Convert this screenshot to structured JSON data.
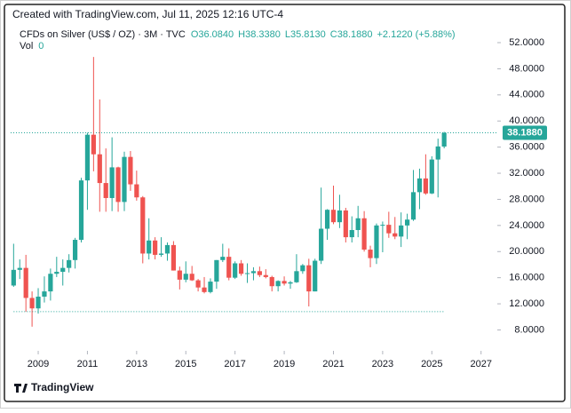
{
  "header": {
    "created": "Created with TradingView.com, Jul 11, 2025 12:16 UTC-4"
  },
  "footer": {
    "brand": "TradingView"
  },
  "chart_data": {
    "type": "candlestick",
    "symbol": "CFDs on Silver (US$ / OZ) · 3M · TVC",
    "ohlc_labels": [
      "O36.0840",
      "H38.3380",
      "L35.8130",
      "C38.1880"
    ],
    "change": "+2.1220 (+5.88%)",
    "volume_label": "Vol",
    "volume": 0,
    "up_color": "#26a69a",
    "down_color": "#ef5350",
    "last_price": {
      "value": 38.188,
      "label": "38.1880"
    },
    "hline": 10.8,
    "xlim": [
      2007.88,
      2027.66
    ],
    "xticks": [
      2009,
      2011,
      2013,
      2015,
      2017,
      2019,
      2021,
      2023,
      2025,
      2027
    ],
    "ylim": [
      4.8,
      54.45
    ],
    "yticks": [
      {
        "value": 8,
        "label": "8.0000"
      },
      {
        "value": 12,
        "label": "12.0000"
      },
      {
        "value": 16,
        "label": "16.0000"
      },
      {
        "value": 20,
        "label": "20.0000"
      },
      {
        "value": 24,
        "label": "24.0000"
      },
      {
        "value": 28,
        "label": "28.0000"
      },
      {
        "value": 32,
        "label": "32.0000"
      },
      {
        "value": 36,
        "label": "36.0000"
      },
      {
        "value": 40,
        "label": "40.0000"
      },
      {
        "value": 44,
        "label": "44.0000"
      },
      {
        "value": 48,
        "label": "48.0000"
      },
      {
        "value": 52,
        "label": "52.0000"
      }
    ],
    "x": [
      2008,
      2008.25,
      2008.5,
      2008.75,
      2009,
      2009.25,
      2009.5,
      2009.75,
      2010,
      2010.25,
      2010.5,
      2010.75,
      2011,
      2011.25,
      2011.5,
      2011.75,
      2012,
      2012.25,
      2012.5,
      2012.75,
      2013,
      2013.25,
      2013.5,
      2013.75,
      2014,
      2014.25,
      2014.5,
      2014.75,
      2015,
      2015.25,
      2015.5,
      2015.75,
      2016,
      2016.25,
      2016.5,
      2016.75,
      2017,
      2017.25,
      2017.5,
      2017.75,
      2018,
      2018.25,
      2018.5,
      2018.75,
      2019,
      2019.25,
      2019.5,
      2019.75,
      2020,
      2020.25,
      2020.5,
      2020.75,
      2021,
      2021.25,
      2021.5,
      2021.75,
      2022,
      2022.25,
      2022.5,
      2022.75,
      2023,
      2023.25,
      2023.5,
      2023.75,
      2024,
      2024.25,
      2024.5,
      2024.75,
      2025,
      2025.25,
      2025.5
    ],
    "open": [
      14.8,
      17.2,
      17.5,
      12.9,
      11.3,
      13.1,
      13.9,
      16.6,
      16.9,
      17.5,
      18.7,
      21.8,
      30.9,
      37.9,
      34.9,
      30.5,
      28.2,
      32.9,
      27.6,
      34.5,
      30.3,
      28.3,
      19.7,
      21.7,
      19.5,
      19.7,
      21.0,
      17.1,
      15.7,
      16.6,
      15.6,
      14.5,
      13.8,
      15.4,
      18.7,
      19.2,
      16.0,
      18.2,
      16.6,
      16.7,
      17.0,
      16.4,
      16.1,
      14.7,
      15.5,
      15.1,
      15.3,
      17.0,
      17.9,
      13.9,
      18.6,
      23.5,
      26.4,
      24.5,
      26.3,
      22.2,
      23.3,
      25.1,
      20.3,
      19.0,
      24.0,
      24.1,
      22.8,
      22.3,
      24.0,
      24.9,
      29.1,
      31.2,
      28.9,
      34.1,
      36.084
    ],
    "high": [
      21.2,
      18.8,
      19.5,
      13.9,
      14.4,
      16.2,
      17.4,
      19.2,
      18.8,
      19.6,
      22.1,
      31.3,
      38.2,
      49.8,
      43.3,
      35.8,
      37.5,
      33.0,
      35.3,
      35.4,
      32.4,
      28.5,
      25.1,
      22.2,
      22.2,
      21.4,
      21.6,
      17.7,
      18.5,
      17.8,
      15.8,
      16.1,
      15.9,
      18.7,
      21.2,
      20.5,
      18.5,
      18.7,
      18.2,
      17.6,
      17.7,
      17.3,
      16.3,
      15.6,
      16.2,
      15.5,
      19.6,
      18.1,
      18.9,
      18.9,
      29.8,
      26.5,
      30.1,
      28.7,
      26.7,
      25.4,
      27.0,
      26.2,
      20.9,
      24.3,
      24.6,
      26.1,
      25.3,
      26.0,
      25.8,
      32.5,
      32.7,
      34.9,
      34.6,
      37.3,
      38.338
    ],
    "low": [
      14.6,
      15.8,
      10.8,
      8.5,
      10.5,
      12.2,
      12.5,
      16.1,
      14.8,
      16.8,
      17.4,
      21.4,
      26.4,
      32.3,
      26.1,
      26.1,
      26.2,
      26.1,
      26.2,
      29.3,
      27.8,
      18.2,
      18.8,
      18.8,
      19.2,
      18.6,
      17.1,
      14.2,
      15.3,
      15.5,
      13.9,
      13.6,
      13.6,
      14.3,
      18.4,
      15.6,
      15.8,
      16.3,
      15.2,
      15.6,
      16.1,
      15.9,
      13.9,
      13.9,
      14.8,
      14.3,
      15.2,
      16.6,
      11.6,
      13.9,
      18.1,
      21.8,
      24.2,
      23.6,
      21.4,
      21.4,
      22.2,
      20.0,
      17.6,
      18.1,
      19.9,
      22.1,
      21.9,
      20.7,
      21.9,
      24.7,
      26.5,
      28.7,
      28.8,
      28.3,
      35.813
    ],
    "close": [
      17.2,
      17.5,
      12.9,
      11.3,
      13.1,
      13.9,
      16.6,
      16.9,
      17.5,
      18.7,
      21.8,
      30.9,
      37.9,
      34.9,
      30.5,
      28.2,
      32.9,
      27.6,
      34.5,
      30.3,
      28.3,
      19.7,
      21.7,
      19.5,
      19.7,
      21.0,
      17.1,
      15.7,
      16.6,
      15.6,
      14.5,
      13.8,
      15.4,
      18.7,
      19.2,
      16.0,
      18.2,
      16.6,
      16.7,
      17.0,
      16.4,
      16.1,
      14.7,
      15.5,
      15.1,
      15.3,
      17.0,
      17.9,
      13.9,
      18.6,
      23.5,
      26.4,
      24.5,
      26.3,
      22.2,
      23.3,
      25.1,
      20.3,
      19.0,
      24.0,
      24.1,
      22.8,
      22.3,
      24.0,
      24.9,
      29.1,
      31.2,
      28.9,
      34.1,
      36.1,
      38.188
    ]
  }
}
